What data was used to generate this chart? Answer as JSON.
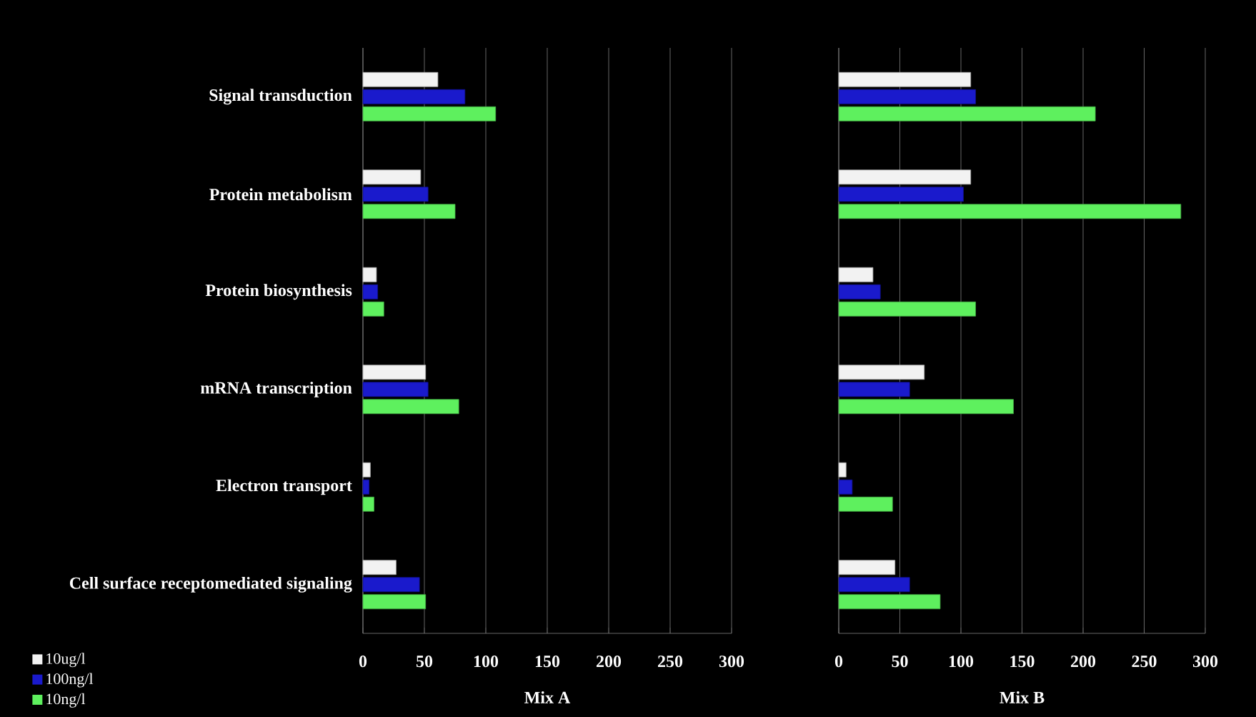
{
  "chart_data": [
    {
      "type": "bar",
      "orientation": "horizontal",
      "xlabel": "Mix A",
      "categories": [
        "Signal transduction",
        "Protein metabolism",
        "Protein biosynthesis",
        "mRNA transcription",
        "Electron transport",
        "Cell surface receptomediated signaling"
      ],
      "series": [
        {
          "name": "10ug/l",
          "color": "#f2f2f2",
          "values": [
            61,
            47,
            11,
            51,
            6,
            27
          ]
        },
        {
          "name": "100ng/l",
          "color": "#1a1acc",
          "values": [
            83,
            53,
            12,
            53,
            5,
            46
          ]
        },
        {
          "name": "10ng/l",
          "color": "#5ef05e",
          "values": [
            108,
            75,
            17,
            78,
            9,
            51
          ]
        }
      ],
      "xlim": [
        0,
        300
      ],
      "xticks": [
        0,
        50,
        100,
        150,
        200,
        250,
        300
      ],
      "grid": "x",
      "legend": "bottom left"
    },
    {
      "type": "bar",
      "orientation": "horizontal",
      "xlabel": "Mix B",
      "categories": [
        null,
        null,
        null,
        null,
        null,
        null
      ],
      "series": [
        {
          "color": "#f2f2f2",
          "values": [
            108,
            108,
            28,
            70,
            6,
            46
          ]
        },
        {
          "color": "#1a1acc",
          "values": [
            112,
            102,
            34,
            58,
            11,
            58
          ]
        },
        {
          "color": "#5ef05e",
          "values": [
            210,
            280,
            112,
            143,
            44,
            83
          ]
        }
      ],
      "xlim": [
        0,
        300
      ],
      "xticks": [
        0,
        50,
        100,
        150,
        200,
        250,
        300
      ],
      "grid": "x"
    }
  ]
}
